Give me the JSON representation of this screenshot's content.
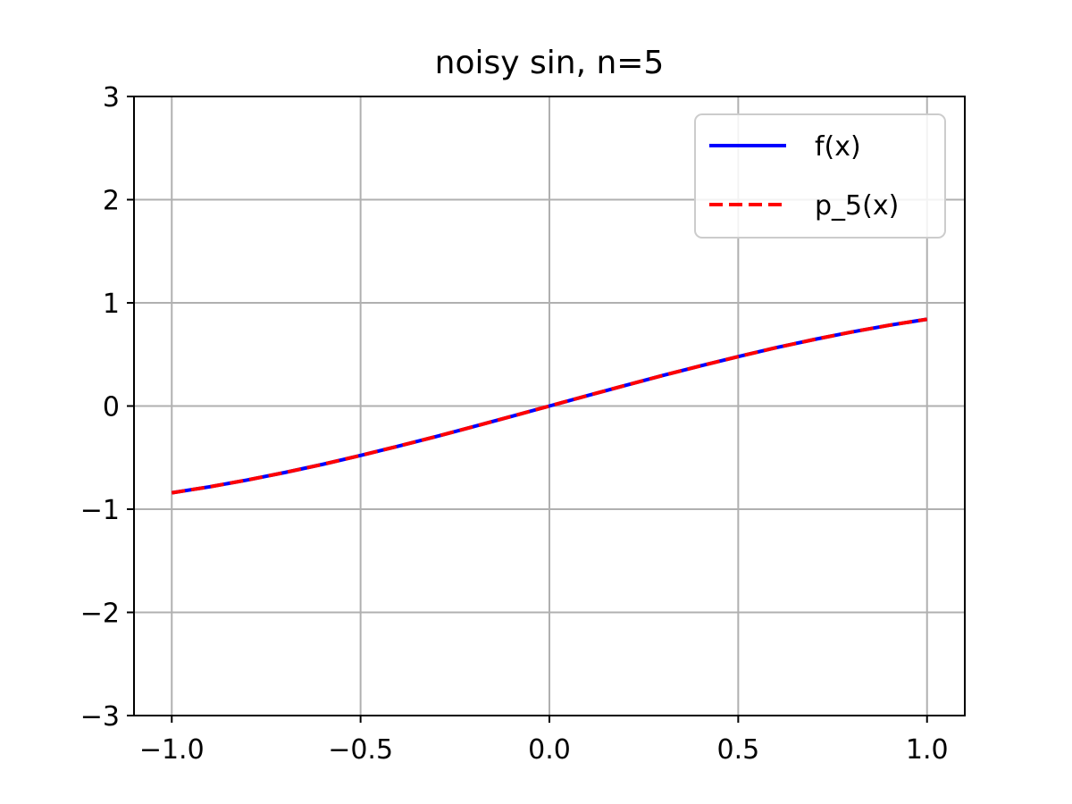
{
  "chart_data": {
    "type": "line",
    "title": "noisy sin, n=5",
    "xlabel": "",
    "ylabel": "",
    "xlim": [
      -1.1,
      1.1
    ],
    "ylim": [
      -3,
      3
    ],
    "xticks": [
      -1.0,
      -0.5,
      0.0,
      0.5,
      1.0
    ],
    "xtick_labels": [
      "−1.0",
      "−0.5",
      "0.0",
      "0.5",
      "1.0"
    ],
    "yticks": [
      -3,
      -2,
      -1,
      0,
      1,
      2,
      3
    ],
    "ytick_labels": [
      "−3",
      "−2",
      "−1",
      "0",
      "1",
      "2",
      "3"
    ],
    "grid": true,
    "legend_position": "top-right",
    "x": [
      -1.0,
      -0.9,
      -0.8,
      -0.7,
      -0.6,
      -0.5,
      -0.4,
      -0.3,
      -0.2,
      -0.1,
      0.0,
      0.1,
      0.2,
      0.3,
      0.4,
      0.5,
      0.6,
      0.7,
      0.8,
      0.9,
      1.0
    ],
    "series": [
      {
        "name": "f(x)",
        "color": "#0000ff",
        "style": "solid",
        "values": [
          -0.841,
          -0.783,
          -0.717,
          -0.644,
          -0.565,
          -0.479,
          -0.389,
          -0.296,
          -0.199,
          -0.1,
          0.0,
          0.1,
          0.199,
          0.296,
          0.389,
          0.479,
          0.565,
          0.644,
          0.717,
          0.783,
          0.841
        ]
      },
      {
        "name": "p_5(x)",
        "color": "#ff0000",
        "style": "dashed",
        "values": [
          -0.841,
          -0.783,
          -0.717,
          -0.644,
          -0.565,
          -0.479,
          -0.389,
          -0.296,
          -0.199,
          -0.1,
          0.0,
          0.1,
          0.199,
          0.296,
          0.389,
          0.479,
          0.565,
          0.644,
          0.717,
          0.783,
          0.841
        ]
      }
    ]
  }
}
